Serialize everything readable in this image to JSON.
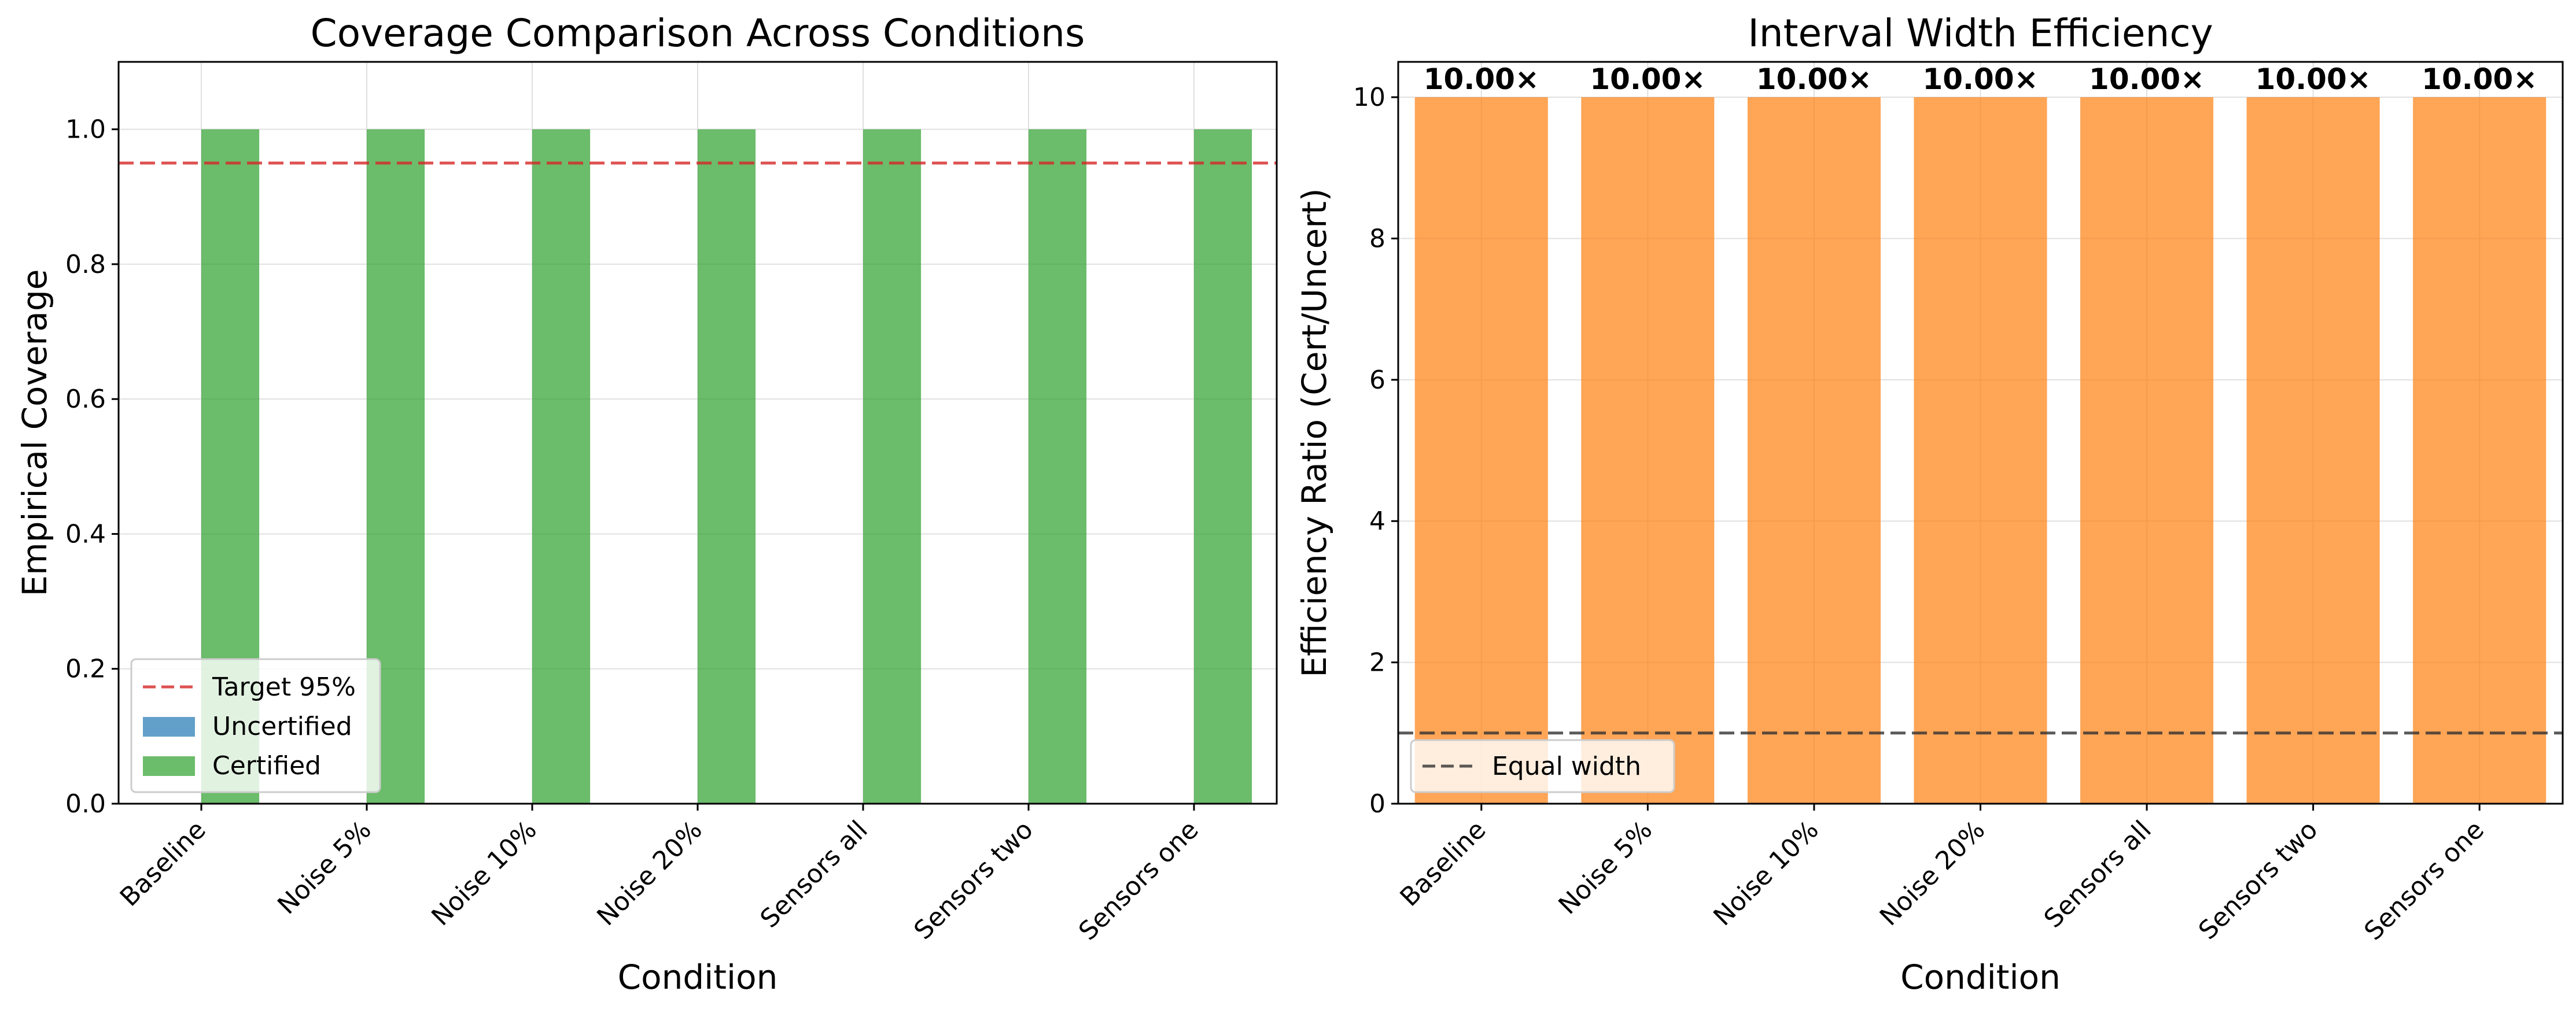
{
  "chart_data": [
    {
      "type": "bar",
      "title": "Coverage Comparison Across Conditions",
      "xlabel": "Condition",
      "ylabel": "Empirical Coverage",
      "categories": [
        "Baseline",
        "Noise 5%",
        "Noise 10%",
        "Noise 20%",
        "Sensors all",
        "Sensors two",
        "Sensors one"
      ],
      "series": [
        {
          "name": "Uncertified",
          "values": [
            0,
            0,
            0,
            0,
            0,
            0,
            0
          ],
          "color": "#1f77b4"
        },
        {
          "name": "Certified",
          "values": [
            1.0,
            1.0,
            1.0,
            1.0,
            1.0,
            1.0,
            1.0
          ],
          "color": "#2ca02c"
        }
      ],
      "reference_line": {
        "name": "Target 95%",
        "value": 0.95,
        "color": "#d62728",
        "style": "dashed"
      },
      "ylim": [
        0,
        1.1
      ],
      "yticks": [
        0.0,
        0.2,
        0.4,
        0.6,
        0.8,
        1.0
      ],
      "ytick_labels": [
        "0.0",
        "0.2",
        "0.4",
        "0.6",
        "0.8",
        "1.0"
      ],
      "grid": true,
      "legend_position": "lower-left"
    },
    {
      "type": "bar",
      "title": "Interval Width Efficiency",
      "xlabel": "Condition",
      "ylabel": "Efficiency Ratio (Cert/Uncert)",
      "categories": [
        "Baseline",
        "Noise 5%",
        "Noise 10%",
        "Noise 20%",
        "Sensors all",
        "Sensors two",
        "Sensors one"
      ],
      "values": [
        10.0,
        10.0,
        10.0,
        10.0,
        10.0,
        10.0,
        10.0
      ],
      "data_labels": [
        "10.00×",
        "10.00×",
        "10.00×",
        "10.00×",
        "10.00×",
        "10.00×",
        "10.00×"
      ],
      "bar_color": "#ff7f0e",
      "reference_line": {
        "name": "Equal width",
        "value": 1.0,
        "color": "#333333",
        "style": "dashed"
      },
      "ylim": [
        0,
        10.5
      ],
      "yticks": [
        0,
        2,
        4,
        6,
        8,
        10
      ],
      "ytick_labels": [
        "0",
        "2",
        "4",
        "6",
        "8",
        "10"
      ],
      "grid": true,
      "legend_position": "lower-left"
    }
  ]
}
